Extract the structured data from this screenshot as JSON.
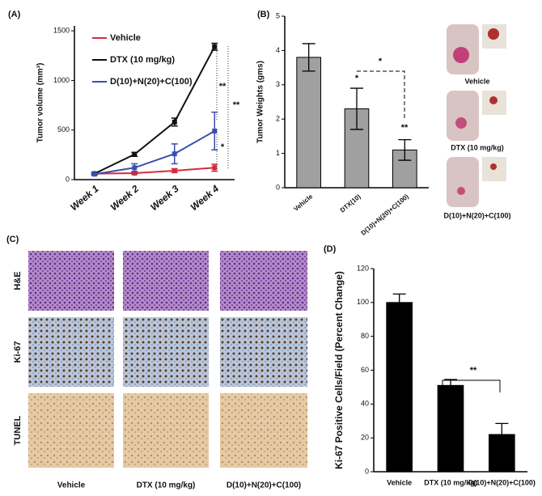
{
  "chart_data": [
    {
      "type": "line",
      "panel_label": "(A)",
      "y_label": "Tumor volume (mm³)",
      "categories": [
        "Week 1",
        "Week 2",
        "Week 3",
        "Week 4"
      ],
      "series": [
        {
          "name": "Vehicle",
          "color": "#d62b3a",
          "values": [
            60,
            65,
            90,
            120
          ],
          "errors": [
            10,
            10,
            20,
            35
          ]
        },
        {
          "name": "DTX (10 mg/kg)",
          "color": "#111111",
          "values": [
            60,
            255,
            580,
            1340
          ],
          "errors": [
            10,
            20,
            40,
            35
          ]
        },
        {
          "name": "D(10)+N(20)+C(100)",
          "color": "#3a4fb0",
          "values": [
            55,
            120,
            260,
            490
          ],
          "errors": [
            10,
            40,
            100,
            190
          ]
        }
      ],
      "ylim": [
        0,
        1550
      ],
      "yticks": [
        0,
        500,
        1000,
        1500
      ],
      "annotations": [
        "**",
        "**",
        "*"
      ]
    },
    {
      "type": "bar",
      "panel_label": "(B)",
      "y_label": "Tumor Weights (gms)",
      "categories": [
        "Vehicle",
        "DTX(10)",
        "D(10)+N(20)+C(100)"
      ],
      "values": [
        3.8,
        2.3,
        1.1
      ],
      "errors": [
        0.4,
        0.6,
        0.3
      ],
      "color": "#a0a0a0",
      "ylim": [
        0,
        5
      ],
      "yticks": [
        0,
        1,
        2,
        3,
        4,
        5
      ],
      "annotations": [
        "*",
        "**",
        "*"
      ]
    },
    {
      "type": "bar",
      "panel_label": "(D)",
      "y_label": "Ki-67 Positive Cells/Field (Percent Change)",
      "categories": [
        "Vehicle",
        "DTX (10 mg/kg)",
        "D(10)+N(20)+C(100)"
      ],
      "values": [
        100,
        51,
        22
      ],
      "errors": [
        5,
        3.5,
        6.5
      ],
      "color": "#000000",
      "ylim": [
        0,
        120
      ],
      "yticks": [
        0,
        20,
        40,
        60,
        80,
        100,
        120
      ],
      "annotations": [
        "**"
      ]
    }
  ],
  "mouse_photos": [
    "Vehicle",
    "DTX (10 mg/kg)",
    "D(10)+N(20)+C(100)"
  ],
  "histology": {
    "panel_label": "(C)",
    "rows": [
      "H&E",
      "Ki-67",
      "TUNEL"
    ],
    "columns": [
      "Vehicle",
      "DTX (10 mg/kg)",
      "D(10)+N(20)+C(100)"
    ]
  }
}
